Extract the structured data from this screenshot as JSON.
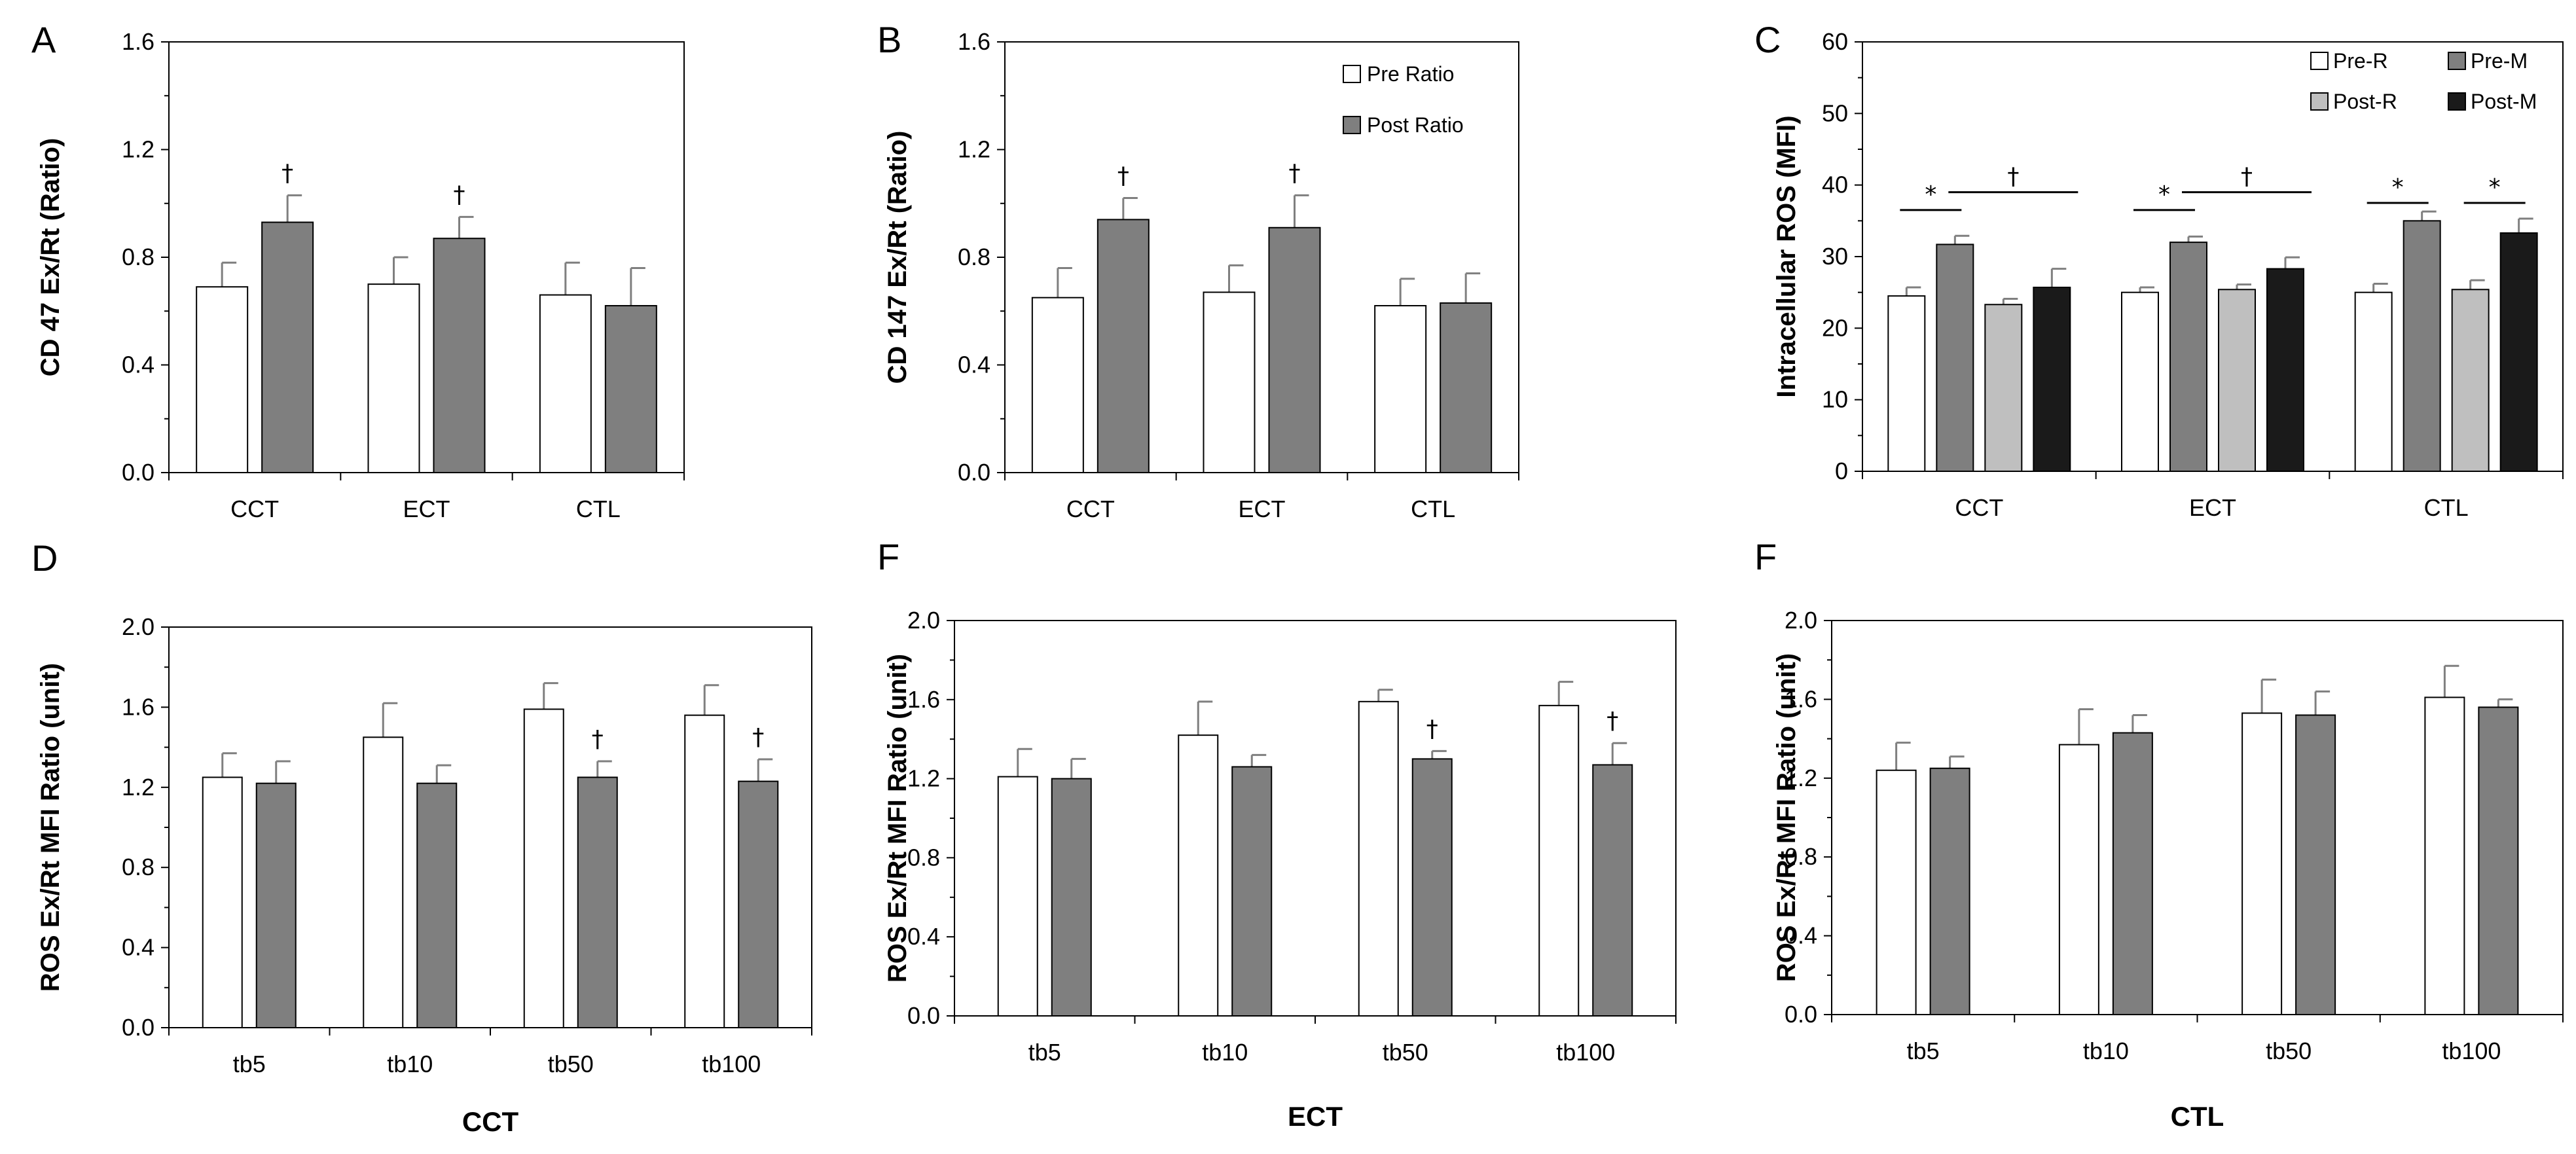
{
  "colors": {
    "white": "#ffffff",
    "gray": "#7f7f7f",
    "light": "#bfbfbf",
    "black": "#1a1a1a",
    "err": "#7f7f7f"
  },
  "chart_data": [
    {
      "letter": "A",
      "type": "bar",
      "ylabel": "CD 47 Ex/Rt (Ratio)",
      "xlabel": "",
      "ylim": [
        0,
        1.6
      ],
      "yticks": [
        "0.0",
        "0.4",
        "0.8",
        "1.2",
        "1.6"
      ],
      "categories": [
        "CCT",
        "ECT",
        "CTL"
      ],
      "series": [
        {
          "name": "Pre Ratio",
          "color": "white",
          "values": [
            0.69,
            0.7,
            0.66
          ],
          "errors": [
            0.09,
            0.1,
            0.12
          ]
        },
        {
          "name": "Post Ratio",
          "color": "gray",
          "values": [
            0.93,
            0.87,
            0.62
          ],
          "errors": [
            0.1,
            0.08,
            0.14
          ]
        }
      ],
      "annotations": [
        {
          "series": 1,
          "category": 0,
          "text": "†"
        },
        {
          "series": 1,
          "category": 1,
          "text": "†"
        }
      ]
    },
    {
      "letter": "B",
      "type": "bar",
      "ylabel": "CD 147 Ex/Rt (Ratio)",
      "xlabel": "",
      "ylim": [
        0,
        1.6
      ],
      "yticks": [
        "0.0",
        "0.4",
        "0.8",
        "1.2",
        "1.6"
      ],
      "categories": [
        "CCT",
        "ECT",
        "CTL"
      ],
      "series": [
        {
          "name": "Pre Ratio",
          "color": "white",
          "values": [
            0.65,
            0.67,
            0.62
          ],
          "errors": [
            0.11,
            0.1,
            0.1
          ]
        },
        {
          "name": "Post Ratio",
          "color": "gray",
          "values": [
            0.94,
            0.91,
            0.63
          ],
          "errors": [
            0.08,
            0.12,
            0.11
          ]
        }
      ],
      "legend": [
        {
          "label": "Pre Ratio",
          "color": "white"
        },
        {
          "label": "Post Ratio",
          "color": "gray"
        }
      ],
      "annotations": [
        {
          "series": 1,
          "category": 0,
          "text": "†"
        },
        {
          "series": 1,
          "category": 1,
          "text": "†"
        }
      ]
    },
    {
      "letter": "C",
      "type": "bar",
      "ylabel": "Intracellular ROS (MFI)",
      "xlabel": "",
      "ylim": [
        0,
        60
      ],
      "yticks": [
        "0",
        "10",
        "20",
        "30",
        "40",
        "50",
        "60"
      ],
      "categories": [
        "CCT",
        "ECT",
        "CTL"
      ],
      "series": [
        {
          "name": "Pre-R",
          "color": "white",
          "values": [
            24.5,
            25.0,
            25.0
          ],
          "errors": [
            1.2,
            0.7,
            1.2
          ]
        },
        {
          "name": "Pre-M",
          "color": "gray",
          "values": [
            31.7,
            32.0,
            35.0
          ],
          "errors": [
            1.2,
            0.8,
            1.3
          ]
        },
        {
          "name": "Post-R",
          "color": "light",
          "values": [
            23.3,
            25.4,
            25.4
          ],
          "errors": [
            0.8,
            0.7,
            1.3
          ]
        },
        {
          "name": "Post-M",
          "color": "black",
          "values": [
            25.7,
            28.3,
            33.3
          ],
          "errors": [
            2.6,
            1.6,
            2.0
          ]
        }
      ],
      "legend": [
        {
          "label": "Pre-R",
          "color": "white"
        },
        {
          "label": "Pre-M",
          "color": "gray"
        },
        {
          "label": "Post-R",
          "color": "light"
        },
        {
          "label": "Post-M",
          "color": "black"
        }
      ],
      "brackets": [
        {
          "category": 0,
          "from": 0,
          "to": 1,
          "y": 36.5,
          "text": "*"
        },
        {
          "category": 0,
          "from": 1,
          "to": 3,
          "y": 39.0,
          "text": "†"
        },
        {
          "category": 1,
          "from": 0,
          "to": 1,
          "y": 36.5,
          "text": "*"
        },
        {
          "category": 1,
          "from": 1,
          "to": 3,
          "y": 39.0,
          "text": "†"
        },
        {
          "category": 2,
          "from": 0,
          "to": 1,
          "y": 37.5,
          "text": "*"
        },
        {
          "category": 2,
          "from": 2,
          "to": 3,
          "y": 37.5,
          "text": "*"
        }
      ]
    },
    {
      "letter": "D",
      "type": "bar",
      "ylabel": "ROS Ex/Rt MFI Ratio (unit)",
      "xlabel": "CCT",
      "ylim": [
        0,
        2.0
      ],
      "yticks": [
        "0.0",
        "0.4",
        "0.8",
        "1.2",
        "1.6",
        "2.0"
      ],
      "categories": [
        "tb5",
        "tb10",
        "tb50",
        "tb100"
      ],
      "series": [
        {
          "name": "Pre Ratio",
          "color": "white",
          "values": [
            1.25,
            1.45,
            1.59,
            1.56
          ],
          "errors": [
            0.12,
            0.17,
            0.13,
            0.15
          ]
        },
        {
          "name": "Post Ratio",
          "color": "gray",
          "values": [
            1.22,
            1.22,
            1.25,
            1.23
          ],
          "errors": [
            0.11,
            0.09,
            0.08,
            0.11
          ]
        }
      ],
      "annotations": [
        {
          "series": 1,
          "category": 2,
          "text": "†"
        },
        {
          "series": 1,
          "category": 3,
          "text": "†"
        }
      ]
    },
    {
      "letter": "F",
      "type": "bar",
      "ylabel": "ROS Ex/Rt MFI Ratio (unit)",
      "xlabel": "ECT",
      "ylim": [
        0,
        2.0
      ],
      "yticks": [
        "0.0",
        "0.4",
        "0.8",
        "1.2",
        "1.6",
        "2.0"
      ],
      "categories": [
        "tb5",
        "tb10",
        "tb50",
        "tb100"
      ],
      "series": [
        {
          "name": "Pre Ratio",
          "color": "white",
          "values": [
            1.21,
            1.42,
            1.59,
            1.57
          ],
          "errors": [
            0.14,
            0.17,
            0.06,
            0.12
          ]
        },
        {
          "name": "Post Ratio",
          "color": "gray",
          "values": [
            1.2,
            1.26,
            1.3,
            1.27
          ],
          "errors": [
            0.1,
            0.06,
            0.04,
            0.11
          ]
        }
      ],
      "annotations": [
        {
          "series": 1,
          "category": 2,
          "text": "†"
        },
        {
          "series": 1,
          "category": 3,
          "text": "†"
        }
      ]
    },
    {
      "letter": "F",
      "type": "bar",
      "ylabel": "ROS Ex/Rt MFI Ratio (unit)",
      "xlabel": "CTL",
      "ylim": [
        0,
        2.0
      ],
      "yticks": [
        "0.0",
        "0.4",
        "0.8",
        "1.2",
        "1.6",
        "2.0"
      ],
      "categories": [
        "tb5",
        "tb10",
        "tb50",
        "tb100"
      ],
      "series": [
        {
          "name": "Pre Ratio",
          "color": "white",
          "values": [
            1.24,
            1.37,
            1.53,
            1.61
          ],
          "errors": [
            0.14,
            0.18,
            0.17,
            0.16
          ]
        },
        {
          "name": "Post Ratio",
          "color": "gray",
          "values": [
            1.25,
            1.43,
            1.52,
            1.56
          ],
          "errors": [
            0.06,
            0.09,
            0.12,
            0.04
          ]
        }
      ],
      "annotations": []
    }
  ]
}
